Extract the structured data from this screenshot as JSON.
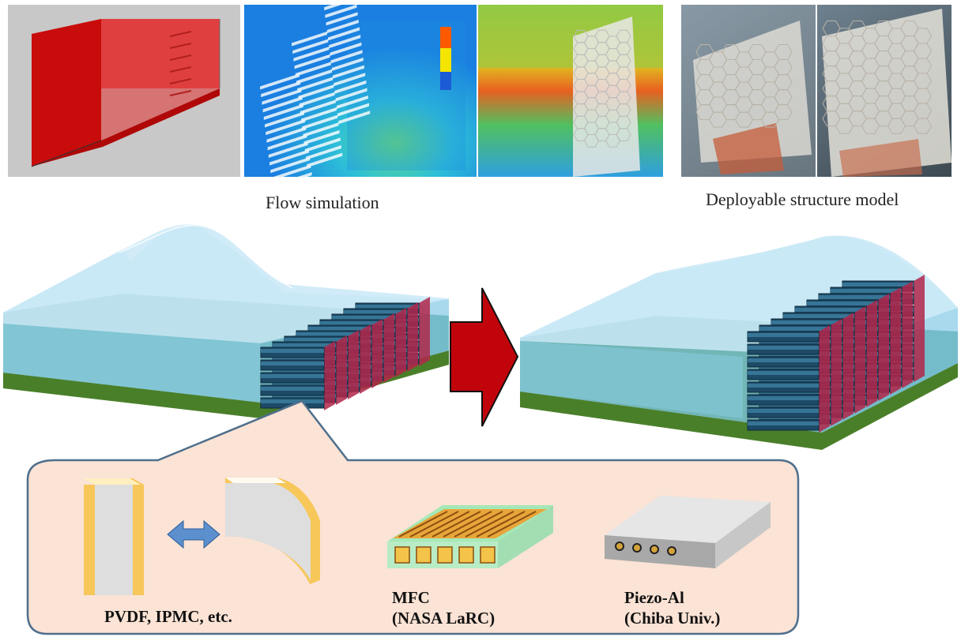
{
  "captions": {
    "flow_simulation": "Flow simulation",
    "deployable_model": "Deployable structure model"
  },
  "devices": {
    "pvdf": "PVDF,  IPMC, etc.",
    "mfc_line1": "MFC",
    "mfc_line2": "(NASA  LaRC)",
    "piezo_line1": "Piezo-Al",
    "piezo_line2": "(Chiba Univ.)"
  },
  "colors": {
    "water": "#9fd4ee",
    "ground_top": "#2f8a6e",
    "ground_side": "#4d7f2a",
    "arrow": "#c0050a",
    "callout_fill": "#fbe3d5",
    "callout_stroke": "#4f6f8c",
    "structure": "#2c5c78"
  }
}
